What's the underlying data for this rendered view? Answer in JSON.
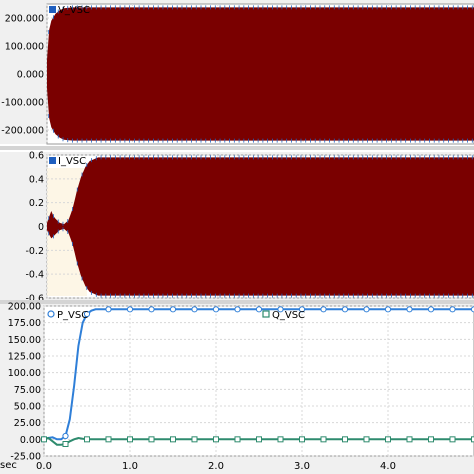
{
  "chart_data": [
    {
      "type": "line",
      "title": "",
      "ylim": [
        -250000,
        250000
      ],
      "yticks": [
        -200000,
        -100000,
        0,
        100000,
        200000
      ],
      "ytick_labels": [
        "-200.000",
        "-100.000",
        "0.000",
        "100.000",
        "200.000"
      ],
      "grid": true,
      "legend_position": "top-left",
      "series": [
        {
          "name": "V_VSC",
          "color": "#7a0000",
          "marker_color": "#1f5fbf",
          "envelope": {
            "x": [
              0,
              0.02,
              0.05,
              0.1,
              0.15,
              0.2,
              0.3,
              0.5,
              1.0,
              2.0,
              3.0,
              4.0,
              5.0
            ],
            "upper": [
              50000,
              150000,
              190000,
              215000,
              228000,
              235000,
              238000,
              238000,
              238000,
              238000,
              238000,
              238000,
              238000
            ],
            "lower": [
              -50000,
              -150000,
              -190000,
              -215000,
              -228000,
              -235000,
              -238000,
              -238000,
              -238000,
              -238000,
              -238000,
              -238000,
              -238000
            ]
          }
        }
      ]
    },
    {
      "type": "line",
      "title": "",
      "ylim": [
        -0.6,
        0.6
      ],
      "yticks": [
        -0.6,
        -0.4,
        -0.2,
        0,
        0.2,
        0.4,
        0.6
      ],
      "ytick_labels": [
        "-0.6",
        "-0.4",
        "-0.2",
        "0",
        "0.2",
        "0.4",
        "0.6"
      ],
      "grid": true,
      "legend_position": "top-left",
      "series": [
        {
          "name": "I_VSC",
          "color": "#7a0000",
          "marker_color": "#1f5fbf",
          "envelope": {
            "x": [
              0,
              0.05,
              0.08,
              0.12,
              0.15,
              0.2,
              0.25,
              0.3,
              0.35,
              0.4,
              0.45,
              0.5,
              0.6,
              0.7,
              1.0,
              2.0,
              3.0,
              4.0,
              5.0
            ],
            "upper": [
              0.03,
              0.13,
              0.08,
              0.05,
              0.03,
              0.02,
              0.05,
              0.15,
              0.3,
              0.42,
              0.5,
              0.55,
              0.58,
              0.58,
              0.58,
              0.58,
              0.58,
              0.58,
              0.58
            ],
            "lower": [
              -0.03,
              -0.1,
              -0.08,
              -0.05,
              -0.03,
              -0.02,
              -0.05,
              -0.15,
              -0.3,
              -0.42,
              -0.5,
              -0.55,
              -0.58,
              -0.58,
              -0.58,
              -0.58,
              -0.58,
              -0.58,
              -0.58
            ]
          }
        }
      ]
    },
    {
      "type": "line",
      "title": "",
      "xlabel": "sec",
      "ylim": [
        -25,
        200
      ],
      "yticks": [
        -25,
        0,
        25,
        50,
        75,
        100,
        125,
        150,
        175,
        200
      ],
      "ytick_labels": [
        "-25.00",
        "0.00",
        "25.00",
        "50.00",
        "75.00",
        "100.00",
        "125.00",
        "150.00",
        "175.00",
        "200.00"
      ],
      "xlim": [
        0,
        5
      ],
      "xticks": [
        0,
        1,
        2,
        3,
        4
      ],
      "xtick_labels": [
        "0.0",
        "1.0",
        "2.0",
        "3.0",
        "4.0"
      ],
      "grid": true,
      "legend_position": "top",
      "series": [
        {
          "name": "P_VSC",
          "color": "#2f7fd8",
          "x": [
            0,
            0.05,
            0.1,
            0.15,
            0.2,
            0.25,
            0.3,
            0.35,
            0.4,
            0.45,
            0.5,
            0.55,
            0.6,
            0.7,
            0.8,
            1.0,
            1.5,
            2.0,
            2.5,
            3.0,
            3.5,
            4.0,
            4.5,
            5.0
          ],
          "y": [
            0,
            2,
            3,
            0,
            0,
            5,
            30,
            80,
            140,
            175,
            188,
            193,
            195,
            195,
            195,
            195,
            195,
            195,
            195,
            195,
            195,
            195,
            195,
            195
          ]
        },
        {
          "name": "Q_VSC",
          "color": "#2e8b6e",
          "x": [
            0,
            0.05,
            0.1,
            0.15,
            0.2,
            0.25,
            0.3,
            0.35,
            0.4,
            0.45,
            0.5,
            0.6,
            0.8,
            1.0,
            1.5,
            2.0,
            2.5,
            3.0,
            3.5,
            4.0,
            4.5,
            5.0
          ],
          "y": [
            0,
            2,
            -3,
            -8,
            -8,
            -7,
            -3,
            0,
            2,
            1,
            0,
            0,
            0,
            0,
            0,
            0,
            0,
            0,
            0,
            0,
            0,
            0
          ]
        }
      ]
    }
  ]
}
